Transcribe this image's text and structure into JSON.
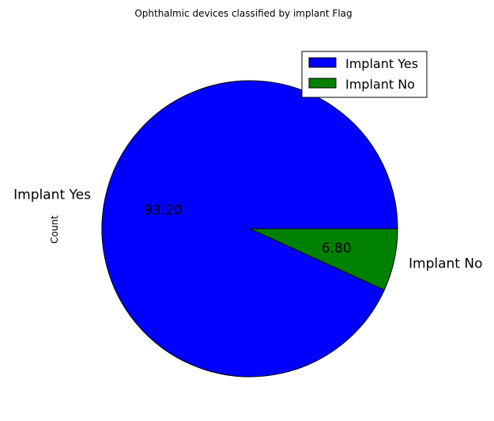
{
  "chart_data": {
    "type": "pie",
    "title": "Ophthalmic devices classified by implant Flag",
    "ylabel": "Count",
    "slices": [
      {
        "label": "Implant Yes",
        "value": 93.2,
        "value_label": "93.20",
        "color": "#0000ff"
      },
      {
        "label": "Implant No",
        "value": 6.8,
        "value_label": "6.80",
        "color": "#008000"
      }
    ],
    "legend": {
      "placement": "top-right",
      "entries": [
        "Implant Yes",
        "Implant No"
      ]
    }
  }
}
